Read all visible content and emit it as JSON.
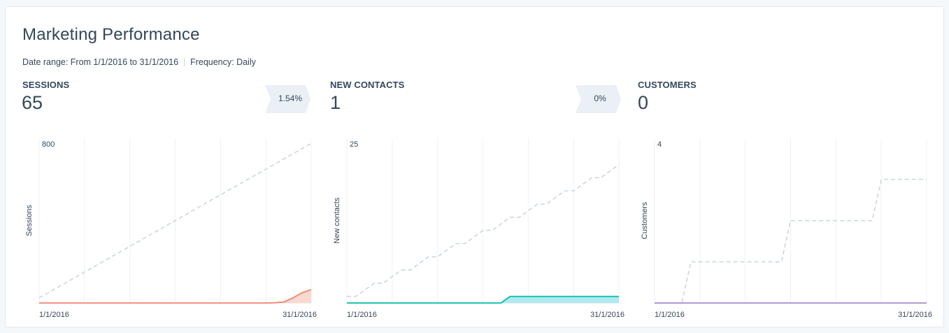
{
  "header": {
    "title": "Marketing Performance",
    "date_range": "Date range: From 1/1/2016 to 31/1/2016",
    "frequency": "Frequency: Daily"
  },
  "panels": [
    {
      "metric": "SESSIONS",
      "value": "65",
      "change": "1.54%"
    },
    {
      "metric": "NEW CONTACTS",
      "value": "1",
      "change": "0%"
    },
    {
      "metric": "CUSTOMERS",
      "value": "0",
      "change": ""
    }
  ],
  "chart_data": [
    {
      "type": "line",
      "ylabel": "Sessions",
      "ylim": [
        0,
        800
      ],
      "y_tick_top": "800",
      "x_start_label": "1/1/2016",
      "x_end_label": "31/1/2016",
      "color": "#f2836b",
      "fill": "#fbd8d0",
      "series": [
        {
          "style": "dashed",
          "color": "#cbd6e2",
          "values": [
            25,
            50,
            75,
            100,
            125,
            150,
            175,
            200,
            225,
            250,
            275,
            300,
            325,
            350,
            375,
            400,
            425,
            450,
            475,
            500,
            525,
            550,
            575,
            600,
            625,
            650,
            675,
            700,
            725,
            750,
            775
          ]
        },
        {
          "style": "area",
          "values": [
            0,
            0,
            0,
            0,
            0,
            0,
            0,
            0,
            0,
            0,
            0,
            0,
            0,
            0,
            0,
            0,
            0,
            0,
            0,
            0,
            0,
            0,
            0,
            0,
            0,
            0,
            1,
            5,
            25,
            50,
            65
          ]
        }
      ]
    },
    {
      "type": "line",
      "ylabel": "New contacts",
      "ylim": [
        0,
        25
      ],
      "y_tick_top": "25",
      "x_start_label": "1/1/2016",
      "x_end_label": "31/1/2016",
      "color": "#00bda5",
      "fill": "#b0eaf0",
      "series": [
        {
          "style": "dashed",
          "color": "#cbd6e2",
          "values": [
            1,
            1,
            2,
            3,
            3,
            4,
            5,
            5,
            6,
            7,
            7,
            8,
            9,
            9,
            10,
            11,
            11,
            12,
            13,
            13,
            14,
            15,
            15,
            16,
            17,
            17,
            18,
            19,
            19,
            20,
            21
          ]
        },
        {
          "style": "area",
          "values": [
            0,
            0,
            0,
            0,
            0,
            0,
            0,
            0,
            0,
            0,
            0,
            0,
            0,
            0,
            0,
            0,
            0,
            0,
            1,
            1,
            1,
            1,
            1,
            1,
            1,
            1,
            1,
            1,
            1,
            1,
            1
          ]
        }
      ]
    },
    {
      "type": "line",
      "ylabel": "Customers",
      "ylim": [
        0,
        4
      ],
      "y_tick_top": "4",
      "x_start_label": "1/1/2016",
      "x_end_label": "31/1/2016",
      "color": "#a78bce",
      "fill": "#e0d5f0",
      "series": [
        {
          "style": "dashed",
          "color": "#cbd6e2",
          "values": [
            0,
            0,
            0,
            0,
            1,
            1,
            1,
            1,
            1,
            1,
            1,
            1,
            1,
            1,
            1,
            2,
            2,
            2,
            2,
            2,
            2,
            2,
            2,
            2,
            2,
            3,
            3,
            3,
            3,
            3,
            3
          ]
        },
        {
          "style": "area",
          "values": [
            0,
            0,
            0,
            0,
            0,
            0,
            0,
            0,
            0,
            0,
            0,
            0,
            0,
            0,
            0,
            0,
            0,
            0,
            0,
            0,
            0,
            0,
            0,
            0,
            0,
            0,
            0,
            0,
            0,
            0,
            0
          ]
        }
      ]
    }
  ]
}
